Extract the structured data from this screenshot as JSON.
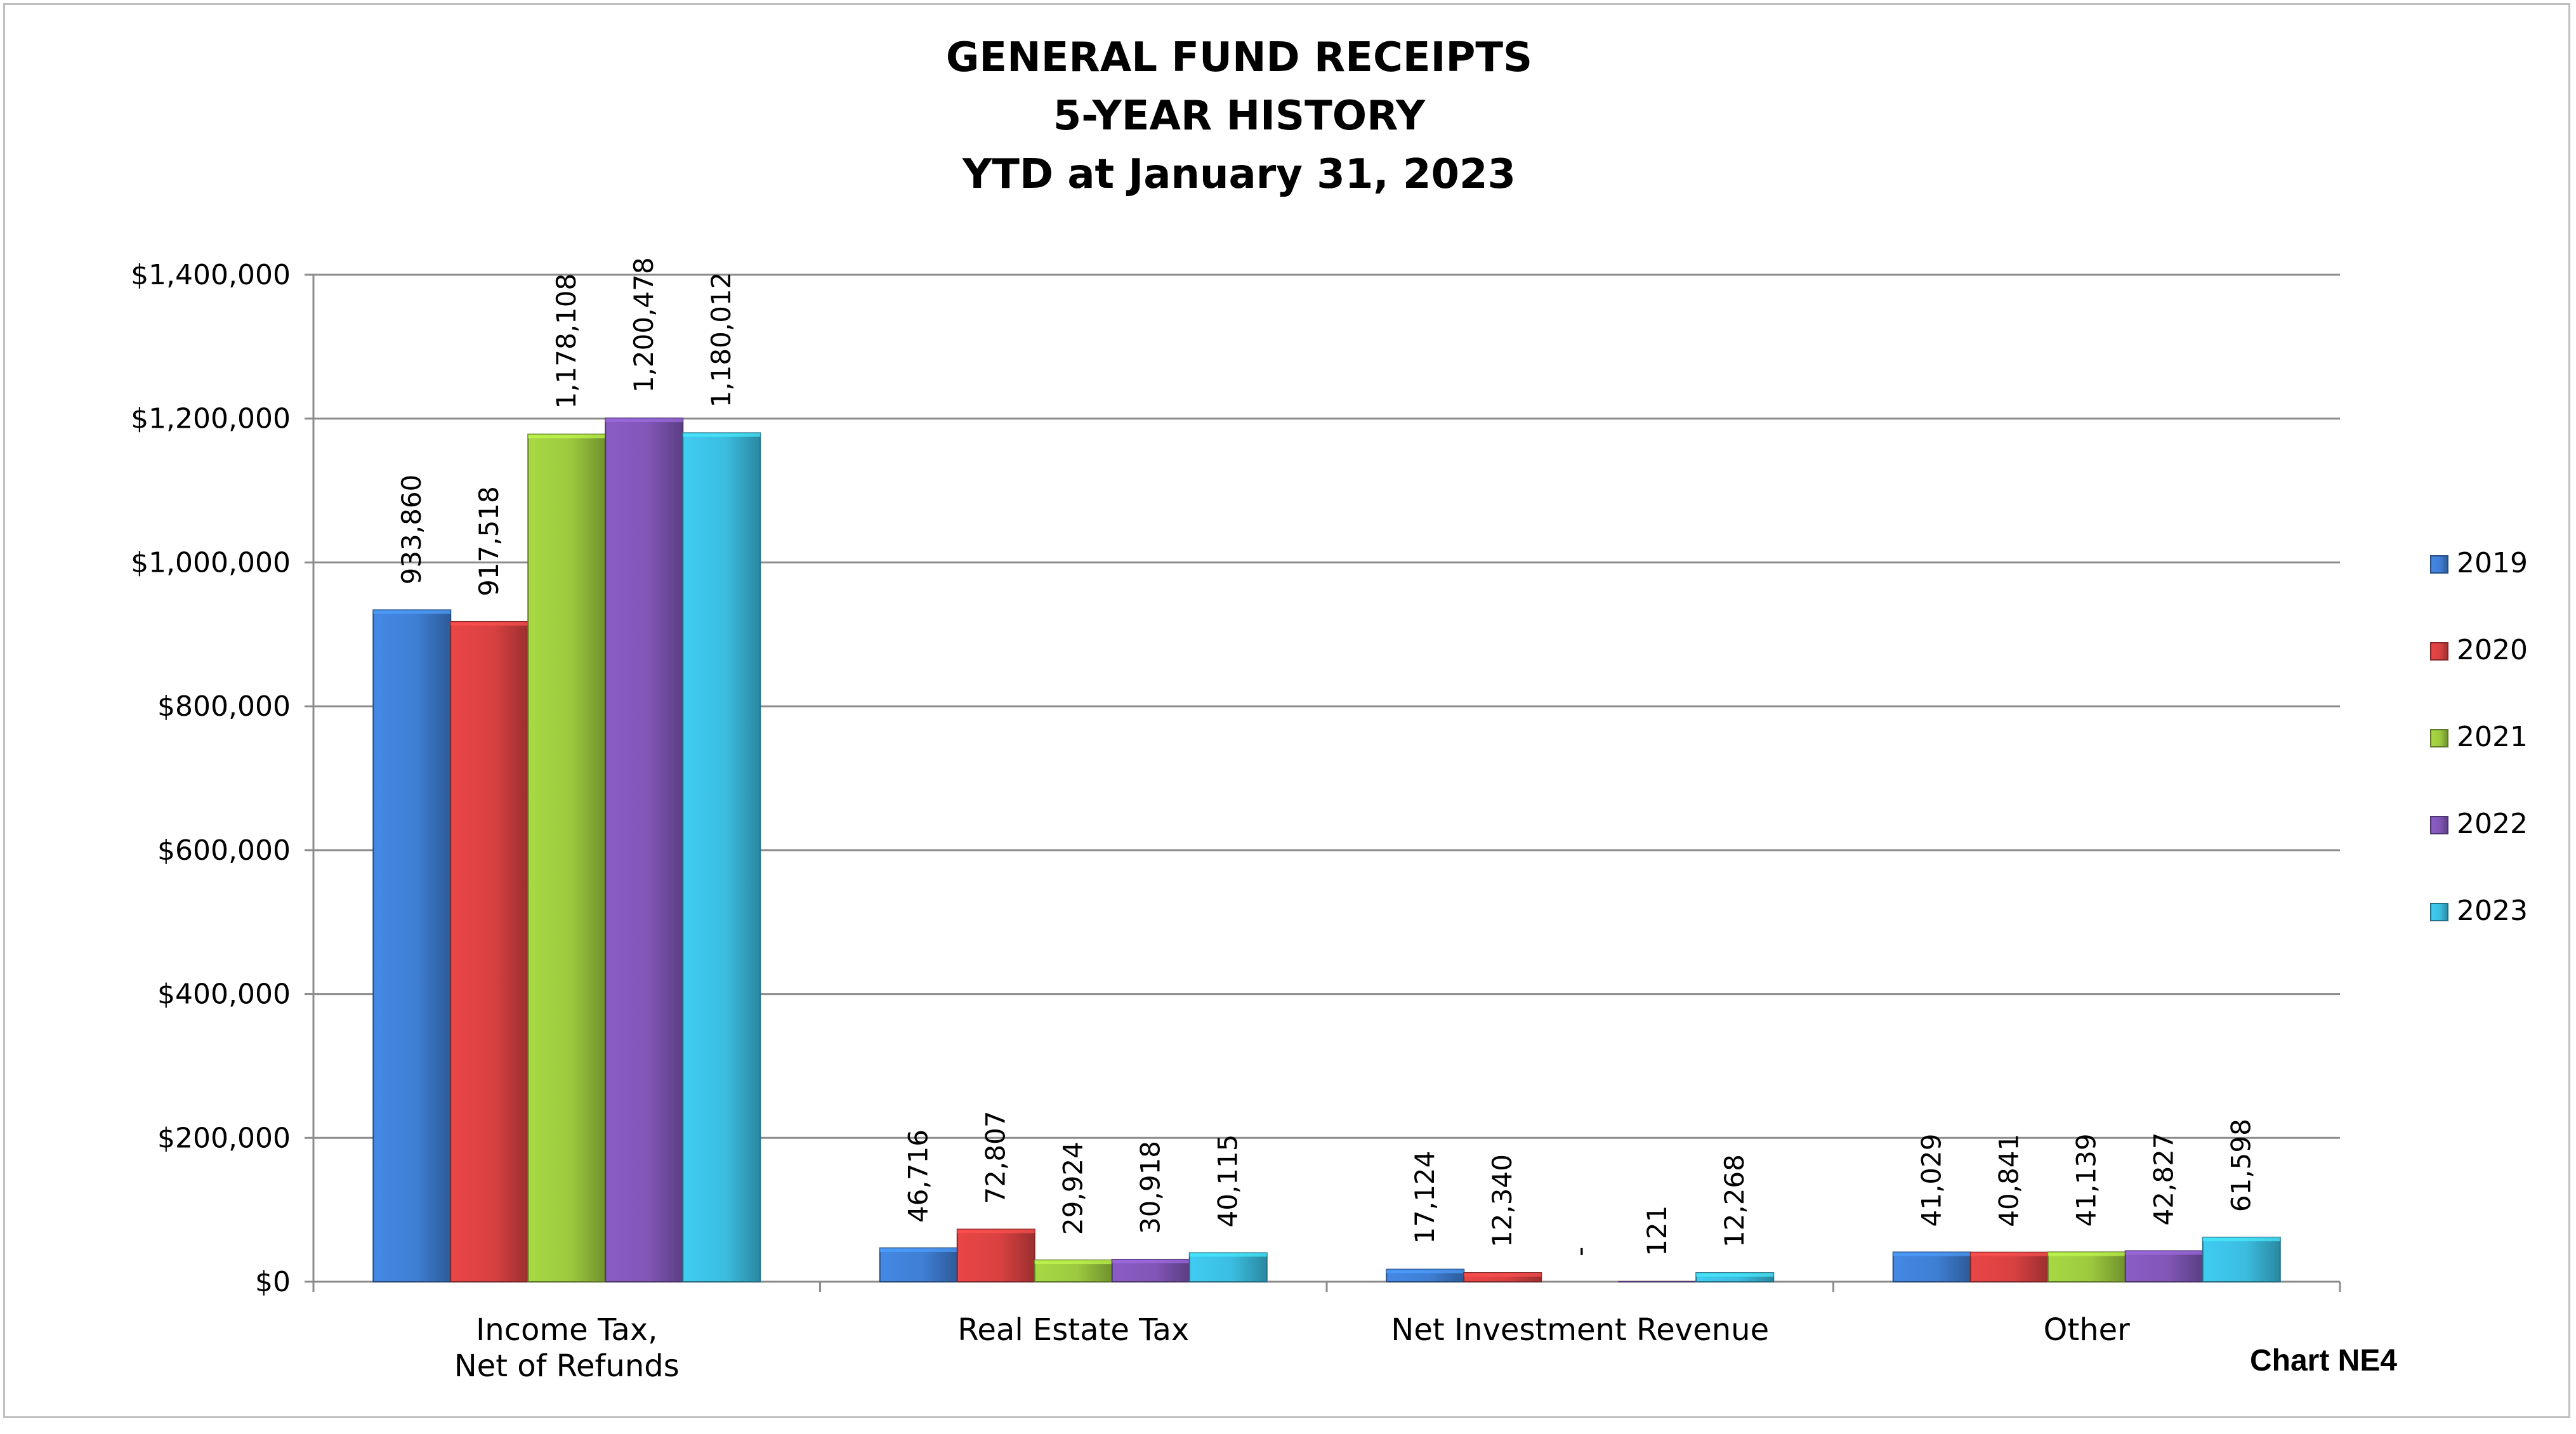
{
  "chart_data": {
    "type": "bar",
    "title_lines": [
      "GENERAL FUND RECEIPTS",
      "5-YEAR HISTORY",
      "YTD at January 31, 2023"
    ],
    "categories": [
      [
        "Income Tax,",
        "Net of Refunds"
      ],
      [
        "Real Estate Tax"
      ],
      [
        "Net Investment Revenue"
      ],
      [
        "Other"
      ]
    ],
    "series": [
      {
        "name": "2019",
        "color": "#3f7fd4",
        "values": [
          933860,
          46716,
          17124,
          41029
        ],
        "labels": [
          "933,860",
          "46,716",
          "17,124",
          "41,029"
        ]
      },
      {
        "name": "2020",
        "color": "#d94141",
        "values": [
          917518,
          72807,
          12340,
          40841
        ],
        "labels": [
          "917,518",
          "72,807",
          "12,340",
          "40,841"
        ]
      },
      {
        "name": "2021",
        "color": "#9cc93f",
        "values": [
          1178108,
          29924,
          0,
          41139
        ],
        "labels": [
          "1,178,108",
          "29,924",
          "-",
          "41,139"
        ]
      },
      {
        "name": "2022",
        "color": "#8056b6",
        "values": [
          1200478,
          30918,
          121,
          42827
        ],
        "labels": [
          "1,200,478",
          "30,918",
          "121",
          "42,827"
        ]
      },
      {
        "name": "2023",
        "color": "#3bbde0",
        "values": [
          1180012,
          40115,
          12268,
          61598
        ],
        "labels": [
          "1,180,012",
          "40,115",
          "12,268",
          "61,598"
        ]
      }
    ],
    "yticks": [
      0,
      200000,
      400000,
      600000,
      800000,
      1000000,
      1200000,
      1400000
    ],
    "ytick_labels": [
      "$0",
      "$200,000",
      "$400,000",
      "$600,000",
      "$800,000",
      "$1,000,000",
      "$1,200,000",
      "$1,400,000"
    ],
    "ylim": [
      0,
      1400000
    ],
    "grid": true,
    "legend_position": "right",
    "footnote": "Chart NE4"
  }
}
